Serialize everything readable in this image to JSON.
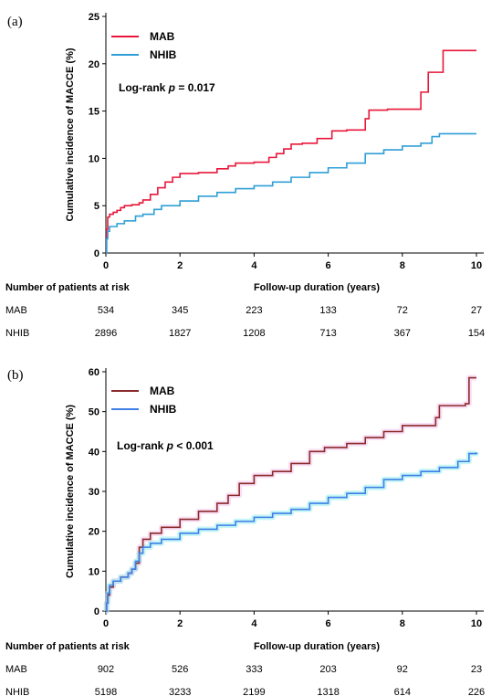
{
  "chart_data": [
    {
      "type": "line",
      "panel_label": "(a)",
      "title": "",
      "xlabel": "Follow-up duration (years)",
      "ylabel": "Cumulative incidence of MACCE (%)",
      "xlim": [
        0,
        10
      ],
      "ylim": [
        0,
        25
      ],
      "xticks": [
        0,
        2,
        4,
        6,
        8,
        10
      ],
      "yticks": [
        0,
        5,
        10,
        15,
        20,
        25
      ],
      "grid": false,
      "legend_position": "top-left",
      "annotation": {
        "prefix": "Log-rank ",
        "italic": "p",
        "suffix": " = 0.017"
      },
      "series": [
        {
          "name": "MAB",
          "color": "#e8173a",
          "x": [
            0,
            0.02,
            0.05,
            0.1,
            0.2,
            0.3,
            0.4,
            0.5,
            0.7,
            0.9,
            1.0,
            1.2,
            1.4,
            1.6,
            1.8,
            2.0,
            2.5,
            3.0,
            3.3,
            3.5,
            4.0,
            4.4,
            4.6,
            4.8,
            5.0,
            5.3,
            5.7,
            6.1,
            6.5,
            7.0,
            7.1,
            7.6,
            8.5,
            8.7,
            9.1,
            9.4,
            10.0
          ],
          "y": [
            0,
            2.5,
            3.8,
            4.1,
            4.3,
            4.5,
            4.8,
            5.0,
            5.1,
            5.3,
            5.6,
            6.2,
            6.9,
            7.5,
            8.0,
            8.4,
            8.5,
            8.9,
            9.2,
            9.5,
            9.6,
            10.1,
            10.5,
            11.0,
            11.5,
            11.6,
            12.1,
            12.9,
            13.0,
            14.2,
            15.1,
            15.2,
            17.0,
            19.1,
            21.4,
            21.4,
            21.4
          ]
        },
        {
          "name": "NHIB",
          "color": "#2e9fd6",
          "x": [
            0,
            0.02,
            0.05,
            0.1,
            0.3,
            0.5,
            0.8,
            1.0,
            1.3,
            1.5,
            2.0,
            2.5,
            3.0,
            3.5,
            4.0,
            4.5,
            5.0,
            5.5,
            6.0,
            6.5,
            7.0,
            7.5,
            8.0,
            8.5,
            8.8,
            9.0,
            10.0
          ],
          "y": [
            0,
            1.5,
            2.3,
            2.8,
            3.1,
            3.4,
            3.9,
            4.1,
            4.6,
            5.0,
            5.5,
            6.0,
            6.4,
            6.8,
            7.1,
            7.5,
            8.0,
            8.5,
            9.0,
            9.5,
            10.5,
            10.9,
            11.3,
            11.6,
            12.3,
            12.6,
            12.6
          ]
        }
      ],
      "risk_table": {
        "header": "Number of patients at risk",
        "rows": [
          {
            "label": "MAB",
            "values": [
              "534",
              "345",
              "223",
              "133",
              "72",
              "27"
            ]
          },
          {
            "label": "NHIB",
            "values": [
              "2896",
              "1827",
              "1208",
              "713",
              "367",
              "154"
            ]
          }
        ]
      }
    },
    {
      "type": "line",
      "panel_label": "(b)",
      "title": "",
      "xlabel": "Follow-up duration (years)",
      "ylabel": "Cumulative incidence of MACCE (%)",
      "xlim": [
        0,
        10
      ],
      "ylim": [
        0,
        60
      ],
      "xticks": [
        0,
        2,
        4,
        6,
        8,
        10
      ],
      "yticks": [
        0,
        10,
        20,
        30,
        40,
        50,
        60
      ],
      "grid": false,
      "legend_position": "top-left",
      "annotation": {
        "prefix": "Log-rank ",
        "italic": "p",
        "suffix": " < 0.001"
      },
      "series": [
        {
          "name": "MAB",
          "color": "#8b2a2a",
          "band_color": "#f2b8e8",
          "x": [
            0,
            0.02,
            0.05,
            0.1,
            0.2,
            0.4,
            0.6,
            0.7,
            0.8,
            0.9,
            1.0,
            1.2,
            1.5,
            2.0,
            2.5,
            3.0,
            3.3,
            3.6,
            4.0,
            4.5,
            5.0,
            5.5,
            5.9,
            6.5,
            7.0,
            7.5,
            8.0,
            8.5,
            8.9,
            9.0,
            9.7,
            9.8,
            10.0
          ],
          "y": [
            0,
            2.0,
            4.0,
            6.0,
            7.5,
            8.5,
            9.5,
            10.5,
            12.0,
            16.0,
            18.0,
            19.5,
            21.0,
            23.0,
            25.0,
            27.0,
            29.0,
            32.0,
            34.0,
            35.0,
            37.0,
            40.0,
            41.0,
            42.0,
            43.5,
            45.0,
            46.5,
            46.5,
            48.5,
            51.5,
            52.0,
            58.5,
            58.5
          ]
        },
        {
          "name": "NHIB",
          "color": "#3f7fe6",
          "band_color": "#7fe8ec",
          "x": [
            0,
            0.02,
            0.05,
            0.1,
            0.2,
            0.4,
            0.6,
            0.7,
            0.8,
            0.9,
            1.0,
            1.2,
            1.5,
            2.0,
            2.5,
            3.0,
            3.5,
            4.0,
            4.5,
            5.0,
            5.5,
            6.0,
            6.5,
            7.0,
            7.5,
            8.0,
            8.5,
            9.0,
            9.5,
            9.8,
            10.0
          ],
          "y": [
            0,
            2.0,
            4.5,
            6.5,
            7.5,
            8.5,
            9.5,
            10.5,
            12.5,
            14.5,
            16.0,
            17.0,
            18.0,
            19.5,
            20.5,
            21.5,
            22.5,
            23.5,
            24.5,
            25.5,
            27.0,
            28.5,
            29.5,
            31.0,
            33.0,
            34.0,
            35.0,
            36.0,
            37.5,
            39.5,
            39.8
          ]
        }
      ],
      "risk_table": {
        "header": "Number of patients at risk",
        "rows": [
          {
            "label": "MAB",
            "values": [
              "902",
              "526",
              "333",
              "203",
              "92",
              "23"
            ]
          },
          {
            "label": "NHIB",
            "values": [
              "5198",
              "3233",
              "2199",
              "1318",
              "614",
              "226"
            ]
          }
        ]
      }
    }
  ]
}
